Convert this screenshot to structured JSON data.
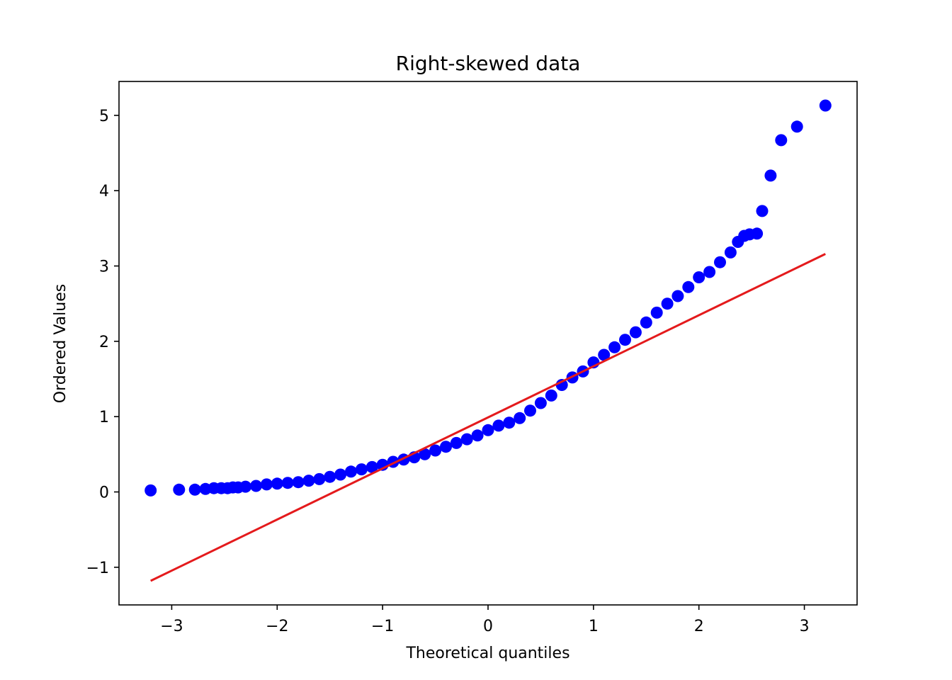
{
  "chart_data": {
    "type": "scatter",
    "title": "Right-skewed data",
    "xlabel": "Theoretical quantiles",
    "ylabel": "Ordered Values",
    "xlim": [
      -3.5,
      3.5
    ],
    "ylim": [
      -1.5,
      5.45
    ],
    "grid": false,
    "x_ticks": [
      -3,
      -2,
      -1,
      0,
      1,
      2,
      3
    ],
    "x_tick_labels": [
      "−3",
      "−2",
      "−1",
      "0",
      "1",
      "2",
      "3"
    ],
    "y_ticks": [
      -1,
      0,
      1,
      2,
      3,
      4,
      5
    ],
    "y_tick_labels": [
      "−1",
      "0",
      "1",
      "2",
      "3",
      "4",
      "5"
    ],
    "colors": {
      "points": "#0000ff",
      "fit_line": "#e41a1c"
    },
    "series": [
      {
        "kind": "points",
        "points": [
          [
            -3.2,
            0.02
          ],
          [
            -2.93,
            0.03
          ],
          [
            -2.78,
            0.03
          ],
          [
            -2.68,
            0.04
          ],
          [
            -2.6,
            0.05
          ],
          [
            -2.53,
            0.05
          ],
          [
            -2.47,
            0.05
          ],
          [
            -2.42,
            0.06
          ],
          [
            -2.37,
            0.06
          ],
          [
            -2.3,
            0.07
          ],
          [
            -2.2,
            0.08
          ],
          [
            -2.1,
            0.1
          ],
          [
            -2.0,
            0.11
          ],
          [
            -1.9,
            0.12
          ],
          [
            -1.8,
            0.13
          ],
          [
            -1.7,
            0.15
          ],
          [
            -1.6,
            0.17
          ],
          [
            -1.5,
            0.2
          ],
          [
            -1.4,
            0.23
          ],
          [
            -1.3,
            0.27
          ],
          [
            -1.2,
            0.3
          ],
          [
            -1.1,
            0.33
          ],
          [
            -1.0,
            0.36
          ],
          [
            -0.9,
            0.4
          ],
          [
            -0.8,
            0.43
          ],
          [
            -0.7,
            0.46
          ],
          [
            -0.6,
            0.5
          ],
          [
            -0.5,
            0.55
          ],
          [
            -0.4,
            0.6
          ],
          [
            -0.3,
            0.65
          ],
          [
            -0.2,
            0.7
          ],
          [
            -0.1,
            0.75
          ],
          [
            0.0,
            0.82
          ],
          [
            0.1,
            0.88
          ],
          [
            0.2,
            0.92
          ],
          [
            0.3,
            0.98
          ],
          [
            0.4,
            1.08
          ],
          [
            0.5,
            1.18
          ],
          [
            0.6,
            1.28
          ],
          [
            0.7,
            1.42
          ],
          [
            0.8,
            1.52
          ],
          [
            0.9,
            1.6
          ],
          [
            1.0,
            1.72
          ],
          [
            1.1,
            1.82
          ],
          [
            1.2,
            1.92
          ],
          [
            1.3,
            2.02
          ],
          [
            1.4,
            2.12
          ],
          [
            1.5,
            2.25
          ],
          [
            1.6,
            2.38
          ],
          [
            1.7,
            2.5
          ],
          [
            1.8,
            2.6
          ],
          [
            1.9,
            2.72
          ],
          [
            2.0,
            2.85
          ],
          [
            2.1,
            2.92
          ],
          [
            2.2,
            3.05
          ],
          [
            2.3,
            3.18
          ],
          [
            2.37,
            3.32
          ],
          [
            2.43,
            3.4
          ],
          [
            2.48,
            3.42
          ],
          [
            2.55,
            3.43
          ],
          [
            2.6,
            3.73
          ],
          [
            2.68,
            4.2
          ],
          [
            2.78,
            4.67
          ],
          [
            2.93,
            4.85
          ],
          [
            3.2,
            5.13
          ]
        ]
      },
      {
        "kind": "line",
        "points": [
          [
            -3.2,
            -1.18
          ],
          [
            3.2,
            3.16
          ]
        ]
      }
    ]
  }
}
